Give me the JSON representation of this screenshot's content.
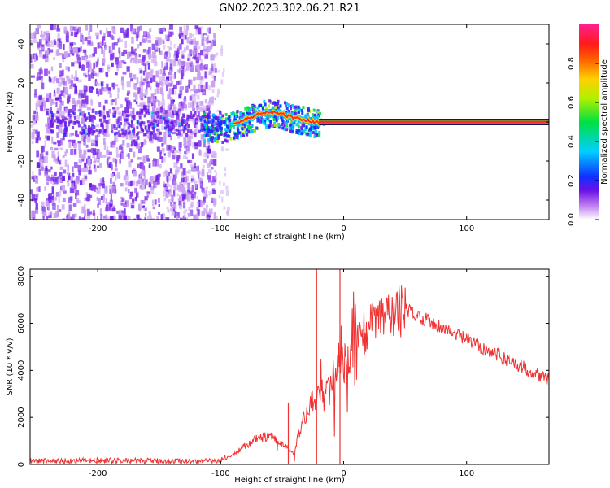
{
  "title": "GN02.2023.302.06.21.R21",
  "colors": {
    "snr_line": "#f03232",
    "ridge_core": "#ff2a2a",
    "ridge_edge": "#20d040",
    "scatter_faint": "#caa0f0",
    "scatter_strong": "#6a1ae6"
  },
  "chart_data": [
    {
      "type": "heatmap",
      "xlabel": "Height of straight line (km)",
      "ylabel": "Frequency (Hz)",
      "xlim": [
        -255,
        167
      ],
      "ylim": [
        -50,
        50
      ],
      "x_ticks": [
        -200,
        -100,
        0,
        100
      ],
      "x_tick_labels": [
        "-200",
        "-100",
        "0",
        "100"
      ],
      "y_ticks": [
        -40,
        -20,
        0,
        20,
        40
      ],
      "y_tick_labels": [
        "-40",
        "-20",
        "0",
        "20",
        "40"
      ],
      "noise_extent_km": [
        -255,
        -105
      ],
      "ridge_frequency_hz": {
        "x": [
          -110,
          -100,
          -90,
          -80,
          -70,
          -60,
          -50,
          -40,
          -30,
          -25,
          -20,
          -15,
          0,
          50,
          100,
          167
        ],
        "y": [
          -2,
          -3,
          -1,
          1,
          4,
          5,
          4,
          2,
          1,
          0,
          0,
          0,
          0,
          0,
          0,
          0
        ]
      },
      "colorbar": {
        "label": "Normalized spectral amplitude",
        "ticks": [
          0.0,
          0.2,
          0.4,
          0.6,
          0.8
        ],
        "tick_labels": [
          "0.0",
          "0.2",
          "0.4",
          "0.6",
          "0.8"
        ],
        "range": [
          0,
          1
        ]
      },
      "grid": false
    },
    {
      "type": "line",
      "xlabel": "Height of straight line (km)",
      "ylabel": "SNR (10 * v/v)",
      "xlim": [
        -255,
        167
      ],
      "ylim": [
        0,
        8300
      ],
      "x_ticks": [
        -200,
        -100,
        0,
        100
      ],
      "x_tick_labels": [
        "-200",
        "-100",
        "0",
        "100"
      ],
      "y_ticks": [
        0,
        2000,
        4000,
        6000,
        8000
      ],
      "y_tick_labels": [
        "0",
        "2000",
        "4000",
        "6000",
        "8000"
      ],
      "grid": false,
      "series": [
        {
          "x": [
            -255,
            -200,
            -150,
            -110,
            -100,
            -90,
            -80,
            -70,
            -60,
            -50,
            -40,
            -35,
            -30,
            -25,
            -20,
            -10,
            0,
            10,
            20,
            30,
            40,
            50,
            100,
            167
          ],
          "y": [
            150,
            160,
            150,
            130,
            200,
            400,
            800,
            1100,
            1200,
            900,
            400,
            1800,
            2200,
            2700,
            3000,
            3700,
            4300,
            5200,
            5800,
            6200,
            6400,
            6600,
            5300,
            3600
          ],
          "spikes": [
            {
              "x": -22,
              "y": 8300
            },
            {
              "x": -3,
              "y": 8300
            },
            {
              "x": -45,
              "y": 2600
            }
          ]
        }
      ]
    }
  ]
}
